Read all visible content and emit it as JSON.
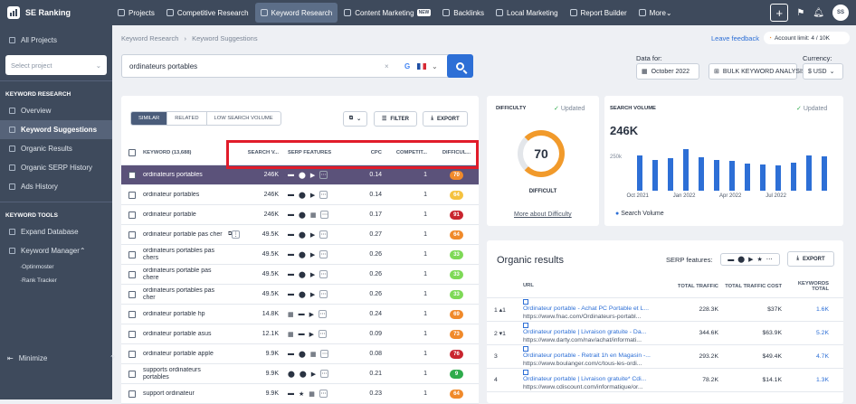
{
  "app": {
    "name": "SE Ranking"
  },
  "topnav": [
    {
      "label": "Projects",
      "active": false
    },
    {
      "label": "Competitive Research",
      "active": false
    },
    {
      "label": "Keyword Research",
      "active": true
    },
    {
      "label": "Content Marketing",
      "active": false,
      "badge": "NEW"
    },
    {
      "label": "Backlinks",
      "active": false
    },
    {
      "label": "Local Marketing",
      "active": false
    },
    {
      "label": "Report Builder",
      "active": false
    },
    {
      "label": "More",
      "active": false
    }
  ],
  "topright": {
    "plus": "+",
    "avatar": "SS"
  },
  "sidebar": {
    "all_projects": "All Projects",
    "select_placeholder": "Select project",
    "kr_head": "KEYWORD RESEARCH",
    "kr_items": [
      {
        "label": "Overview",
        "active": false
      },
      {
        "label": "Keyword Suggestions",
        "active": true
      },
      {
        "label": "Organic Results",
        "active": false
      },
      {
        "label": "Organic SERP History",
        "active": false
      },
      {
        "label": "Ads History",
        "active": false
      }
    ],
    "kt_head": "KEYWORD TOOLS",
    "kt_items": [
      {
        "label": "Expand Database"
      },
      {
        "label": "Keyword Manager"
      }
    ],
    "kt_sub": [
      "Optinmoster",
      "Rank Tracker"
    ],
    "minimize": "Minimize"
  },
  "breadcrumb": {
    "first": "Keyword Research",
    "sep": "›",
    "current": "Keyword Suggestions"
  },
  "leave_feedback": "Leave feedback",
  "account_limit": "Account limit: 4 / 10K",
  "search": {
    "value": "ordinateurs portables",
    "clear": "×",
    "engine": "G"
  },
  "data_for": {
    "label": "Data for:",
    "value": "October 2022"
  },
  "bulk": "BULK KEYWORD ANALYSIS",
  "currency": {
    "label": "Currency:",
    "value": "$ USD"
  },
  "tabs": [
    "SIMILAR",
    "RELATED",
    "LOW SEARCH VOLUME"
  ],
  "toolbar": {
    "filter": "FILTER",
    "export": "EXPORT"
  },
  "table": {
    "headers": {
      "keyword": "KEYWORD (13,688)",
      "volume": "SEARCH V...",
      "serp": "SERP FEATURES",
      "cpc": "CPC",
      "comp": "COMPETIT...",
      "diff": "DIFFICUL..."
    },
    "rows": [
      {
        "kw": "ordinateurs portables",
        "vol": "246K",
        "serp": [
          "▬",
          "⬤",
          "▶",
          "⋯"
        ],
        "cpc": "0.14",
        "comp": "1",
        "diff": "70",
        "color": "#f08a2b",
        "sel": true
      },
      {
        "kw": "ordinateur portables",
        "vol": "246K",
        "serp": [
          "▬",
          "⬤",
          "▶",
          "⋯"
        ],
        "cpc": "0.14",
        "comp": "1",
        "diff": "64",
        "color": "#f5c240",
        "sel": false
      },
      {
        "kw": "ordinateur portable",
        "vol": "246K",
        "serp": [
          "▬",
          "⬤",
          "▦",
          "⋯"
        ],
        "cpc": "0.17",
        "comp": "1",
        "diff": "91",
        "color": "#c9252f",
        "sel": false
      },
      {
        "kw": "ordinateur portable pas cher",
        "vol": "49.5K",
        "serp": [
          "▬",
          "⬤",
          "▶",
          "⋯"
        ],
        "cpc": "0.27",
        "comp": "1",
        "diff": "64",
        "color": "#f08a2b",
        "sel": false
      },
      {
        "kw": "ordinateurs portables pas chers",
        "vol": "49.5K",
        "serp": [
          "▬",
          "⬤",
          "▶",
          "⋯"
        ],
        "cpc": "0.26",
        "comp": "1",
        "diff": "33",
        "color": "#7ed957",
        "sel": false
      },
      {
        "kw": "ordinateurs portable pas chere",
        "vol": "49.5K",
        "serp": [
          "▬",
          "⬤",
          "▶",
          "⋯"
        ],
        "cpc": "0.26",
        "comp": "1",
        "diff": "33",
        "color": "#7ed957",
        "sel": false
      },
      {
        "kw": "ordinateurs portables pas cher",
        "vol": "49.5K",
        "serp": [
          "▬",
          "⬤",
          "▶",
          "⋯"
        ],
        "cpc": "0.26",
        "comp": "1",
        "diff": "33",
        "color": "#7ed957",
        "sel": false
      },
      {
        "kw": "ordinateur portable hp",
        "vol": "14.8K",
        "serp": [
          "▦",
          "▬",
          "▶",
          "⋯"
        ],
        "cpc": "0.24",
        "comp": "1",
        "diff": "69",
        "color": "#f08a2b",
        "sel": false
      },
      {
        "kw": "ordinateur portable asus",
        "vol": "12.1K",
        "serp": [
          "▦",
          "▬",
          "▶",
          "⋯"
        ],
        "cpc": "0.09",
        "comp": "1",
        "diff": "73",
        "color": "#f08a2b",
        "sel": false
      },
      {
        "kw": "ordinateur portable apple",
        "vol": "9.9K",
        "serp": [
          "▬",
          "⬤",
          "▦",
          "⋯"
        ],
        "cpc": "0.08",
        "comp": "1",
        "diff": "76",
        "color": "#c9252f",
        "sel": false
      },
      {
        "kw": "supports ordinateurs portables",
        "vol": "9.9K",
        "serp": [
          "⬤",
          "⬤",
          "▶",
          "⋯"
        ],
        "cpc": "0.21",
        "comp": "1",
        "diff": "9",
        "color": "#2eab4b",
        "sel": false
      },
      {
        "kw": "support ordinateur",
        "vol": "9.9K",
        "serp": [
          "▬",
          "★",
          "▦",
          "⋯"
        ],
        "cpc": "0.23",
        "comp": "1",
        "diff": "64",
        "color": "#f08a2b",
        "sel": false
      }
    ]
  },
  "difficulty": {
    "title": "DIFFICULTY",
    "updated": "Updated",
    "value": "70",
    "label": "DIFFICULT",
    "more": "More about Difficulty"
  },
  "search_volume": {
    "title": "SEARCH VOLUME",
    "updated": "Updated",
    "value": "246K",
    "legend": "Search Volume"
  },
  "chart_data": {
    "type": "bar",
    "categories": [
      "Oct 2021",
      "Nov 2021",
      "Dec 2021",
      "Jan 2022",
      "Feb 2022",
      "Mar 2022",
      "Apr 2022",
      "May 2022",
      "Jun 2022",
      "Jul 2022",
      "Aug 2022",
      "Sep 2022",
      "Oct 2022"
    ],
    "values": [
      270,
      240,
      250,
      320,
      260,
      240,
      230,
      210,
      200,
      195,
      215,
      275,
      265
    ],
    "xticks": [
      "Oct 2021",
      "Jan 2022",
      "Apr 2022",
      "Jul 2022"
    ],
    "yticks": [
      "250k"
    ],
    "ylim": [
      0,
      350
    ],
    "series": [
      {
        "name": "Search Volume",
        "color": "#2d6fd6"
      }
    ]
  },
  "organic": {
    "title": "Organic results",
    "serp_label": "SERP features:",
    "export": "EXPORT",
    "headers": {
      "url": "URL",
      "traffic": "TOTAL TRAFFIC",
      "cost": "TOTAL TRAFFIC COST",
      "kw": "KEYWORDS TOTAL"
    },
    "rows": [
      {
        "n": "1 ▴1",
        "title": "Ordinateur portable - Achat PC Portable et L...",
        "url": "https://www.fnac.com/Ordinateurs-portabl...",
        "traffic": "228.3K",
        "cost": "$37K",
        "kw": "1.6K"
      },
      {
        "n": "2 ▾1",
        "title": "Ordinateur portable | Livraison gratuite - Da...",
        "url": "https://www.darty.com/nav/achat/informati...",
        "traffic": "344.6K",
        "cost": "$63.9K",
        "kw": "5.2K"
      },
      {
        "n": "3",
        "title": "Ordinateur portable - Retrait 1h en Magasin -...",
        "url": "https://www.boulanger.com/c/tous-les-ordi...",
        "traffic": "293.2K",
        "cost": "$49.4K",
        "kw": "4.7K"
      },
      {
        "n": "4",
        "title": "Ordinateur portable | Livraison gratuite* Cdi...",
        "url": "https://www.cdiscount.com/informatique/or...",
        "traffic": "78.2K",
        "cost": "$14.1K",
        "kw": "1.3K"
      }
    ]
  }
}
